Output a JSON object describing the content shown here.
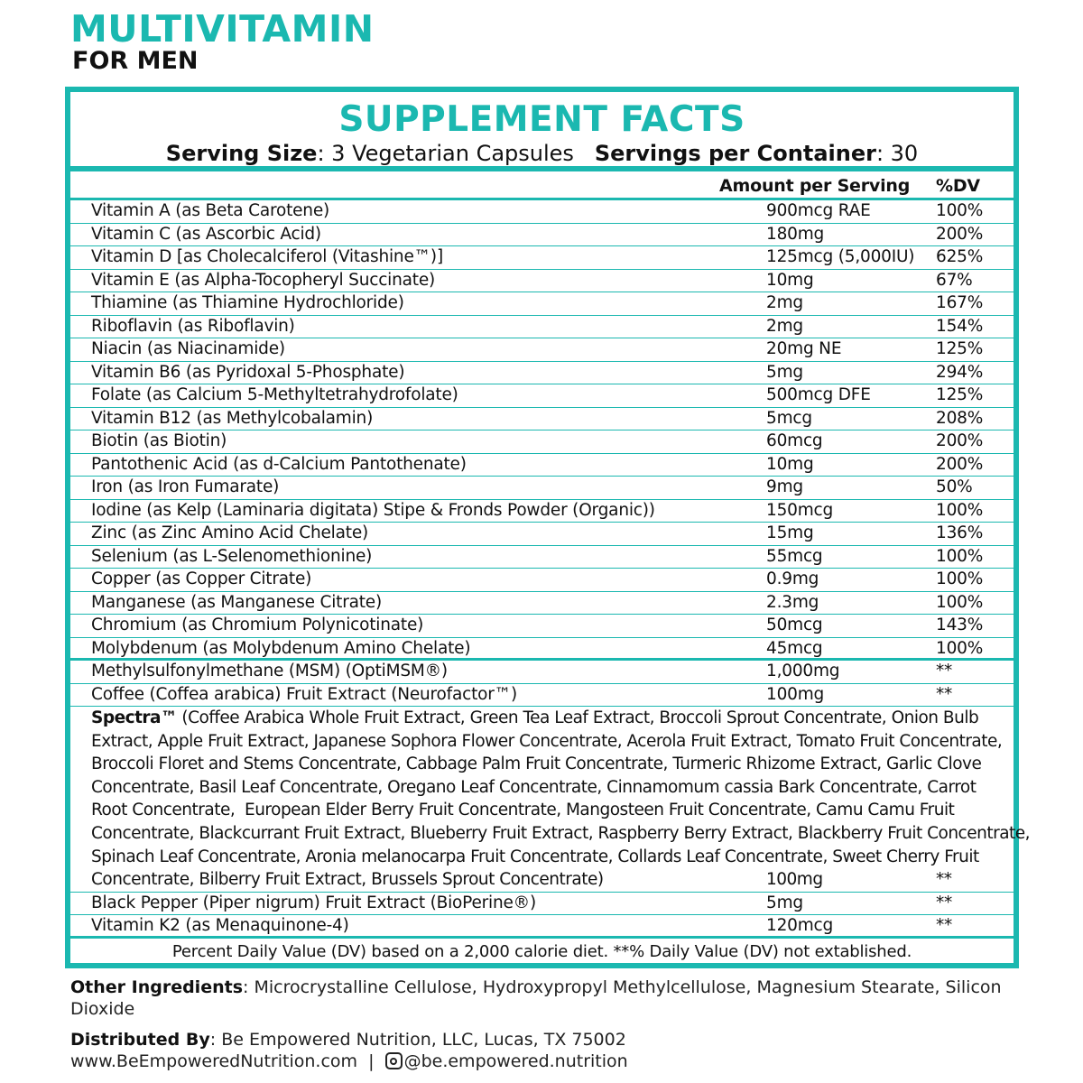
{
  "product": {
    "title": "MULTIVITAMIN",
    "subtitle": "FOR MEN"
  },
  "facts": {
    "title": "SUPPLEMENT FACTS",
    "serving_size_label": "Serving Size",
    "serving_size": ": 3 Vegetarian Capsules",
    "servings_label": "Servings per Container",
    "servings": ": 30",
    "col_amount": "Amount per Serving",
    "col_dv": "%DV",
    "rows": [
      {
        "name": "Vitamin A (as Beta Carotene)",
        "amount": "900mcg RAE",
        "dv": "100%"
      },
      {
        "name": "Vitamin C (as Ascorbic Acid)",
        "amount": "180mg",
        "dv": "200%"
      },
      {
        "name": "Vitamin D [as Cholecalciferol (Vitashine™)]",
        "amount": "125mcg (5,000IU)",
        "dv": "625%"
      },
      {
        "name": "Vitamin E (as Alpha-Tocopheryl Succinate)",
        "amount": "10mg",
        "dv": "67%"
      },
      {
        "name": "Thiamine (as Thiamine Hydrochloride)",
        "amount": "2mg",
        "dv": "167%"
      },
      {
        "name": "Riboflavin (as Riboflavin)",
        "amount": "2mg",
        "dv": "154%"
      },
      {
        "name": "Niacin (as Niacinamide)",
        "amount": "20mg NE",
        "dv": "125%"
      },
      {
        "name": "Vitamin B6 (as Pyridoxal 5-Phosphate)",
        "amount": "5mg",
        "dv": "294%"
      },
      {
        "name": "Folate (as Calcium 5-Methyltetrahydrofolate)",
        "amount": "500mcg DFE",
        "dv": "125%"
      },
      {
        "name": "Vitamin B12 (as Methylcobalamin)",
        "amount": "5mcg",
        "dv": "208%"
      },
      {
        "name": "Biotin (as Biotin)",
        "amount": "60mcg",
        "dv": "200%"
      },
      {
        "name": "Pantothenic Acid (as d-Calcium Pantothenate)",
        "amount": "10mg",
        "dv": "200%"
      },
      {
        "name": "Iron (as Iron Fumarate)",
        "amount": "9mg",
        "dv": "50%"
      },
      {
        "name": "Iodine (as Kelp (Laminaria digitata) Stipe & Fronds Powder (Organic))",
        "amount": "150mcg",
        "dv": "100%"
      },
      {
        "name": "Zinc (as Zinc Amino Acid Chelate)",
        "amount": "15mg",
        "dv": "136%"
      },
      {
        "name": "Selenium (as L-Selenomethionine)",
        "amount": "55mcg",
        "dv": "100%"
      },
      {
        "name": "Copper (as Copper Citrate)",
        "amount": "0.9mg",
        "dv": "100%"
      },
      {
        "name": "Manganese (as Manganese Citrate)",
        "amount": "2.3mg",
        "dv": "100%"
      },
      {
        "name": "Chromium (as Chromium Polynicotinate)",
        "amount": "50mcg",
        "dv": "143%"
      },
      {
        "name": "Molybdenum (as Molybdenum Amino Chelate)",
        "amount": "45mcg",
        "dv": "100%"
      }
    ],
    "other_rows": [
      {
        "name": "Methylsulfonylmethane (MSM) (OptiMSM®)",
        "amount": "1,000mg",
        "dv": "**"
      },
      {
        "name": "Coffee (Coffea arabica) Fruit Extract (Neurofactor™)",
        "amount": "100mg",
        "dv": "**"
      }
    ],
    "spectra": {
      "name": "Spectra™",
      "lines": [
        " (Coffee Arabica Whole Fruit Extract, Green Tea Leaf Extract, Broccoli Sprout Concentrate, Onion Bulb",
        "Extract, Apple Fruit Extract, Japanese Sophora Flower Concentrate, Acerola Fruit Extract, Tomato Fruit Concentrate,",
        "Broccoli Floret and Stems Concentrate, Cabbage Palm Fruit Concentrate, Turmeric Rhizome Extract, Garlic Clove",
        "Concentrate, Basil Leaf Concentrate, Oregano Leaf Concentrate, Cinnamomum cassia Bark Concentrate, Carrot",
        "Root Concentrate,  European Elder Berry Fruit Concentrate, Mangosteen Fruit Concentrate, Camu Camu Fruit",
        "Concentrate, Blackcurrant Fruit Extract, Blueberry Fruit Extract, Raspberry Berry Extract, Blackberry Fruit Concentrate,",
        "Spinach Leaf Concentrate, Aronia melanocarpa Fruit Concentrate, Collards Leaf Concentrate, Sweet Cherry Fruit",
        "Concentrate, Bilberry Fruit Extract, Brussels Sprout Concentrate)"
      ],
      "amount": "100mg",
      "dv": "**"
    },
    "final_rows": [
      {
        "name": "Black Pepper (Piper nigrum) Fruit Extract (BioPerine®)",
        "amount": "5mg",
        "dv": "**"
      },
      {
        "name": "Vitamin K2 (as Menaquinone-4)",
        "amount": "120mcg",
        "dv": "**"
      }
    ],
    "footnote": "Percent Daily Value (DV) based on a 2,000 calorie diet.   **% Daily Value (DV) not extablished."
  },
  "other_ingredients": {
    "label": "Other Ingredients",
    "text": ": Microcrystalline Cellulose, Hydroxypropyl Methylcellulose, Magnesium Stearate, Silicon Dioxide"
  },
  "distributor": {
    "label": "Distributed By",
    "text": ": Be Empowered Nutrition, LLC, Lucas, TX 75002",
    "website": "www.BeEmpoweredNutrition.com  |  ",
    "instagram": "@be.empowered.nutrition"
  },
  "colors": {
    "accent": "#1bb8b0"
  },
  "icons": {
    "social": "instagram-icon"
  }
}
